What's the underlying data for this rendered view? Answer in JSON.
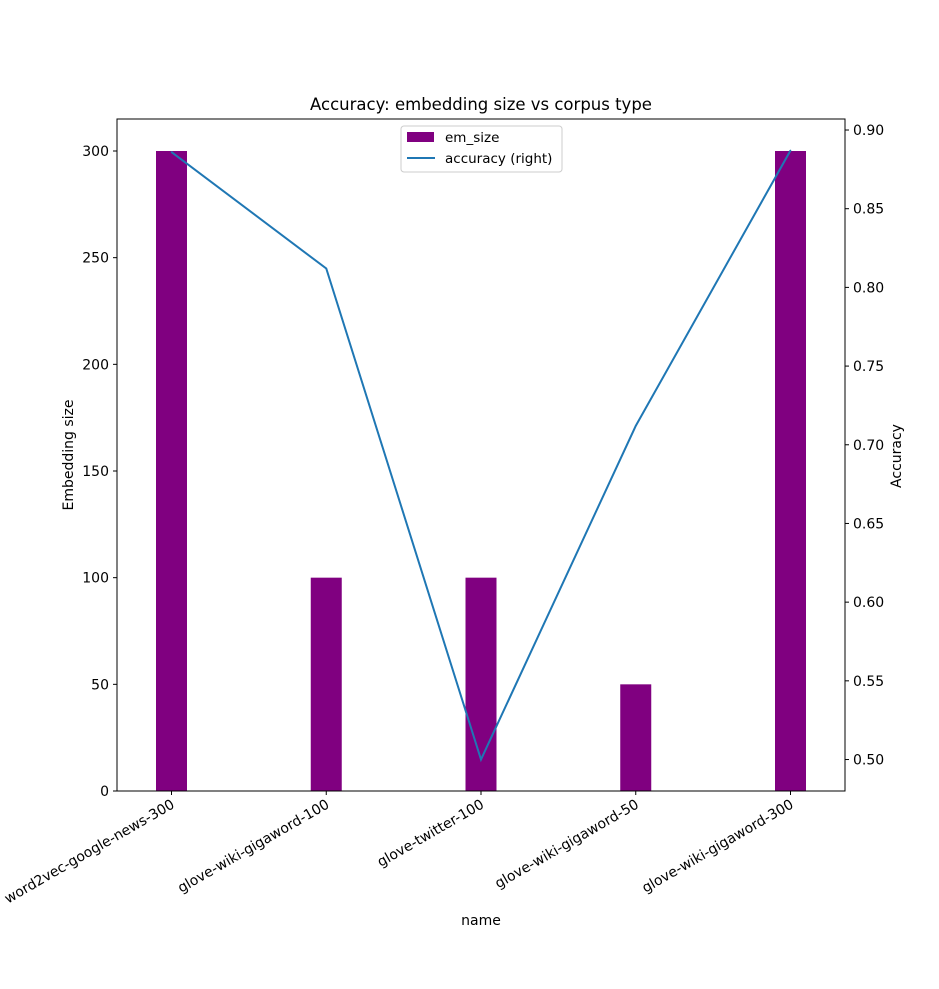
{
  "chart_data": {
    "type": "bar",
    "title": "Accuracy: embedding size vs corpus type",
    "xlabel": "name",
    "ylabel": "Embedding size",
    "y2label": "Accuracy",
    "categories": [
      "word2vec-google-news-300",
      "glove-wiki-gigaword-100",
      "glove-twitter-100",
      "glove-wiki-gigaword-50",
      "glove-wiki-gigaword-300"
    ],
    "series": [
      {
        "name": "em_size",
        "type": "bar",
        "axis": "left",
        "color": "#800080",
        "values": [
          300,
          100,
          100,
          50,
          300
        ]
      },
      {
        "name": "accuracy (right)",
        "type": "line",
        "axis": "right",
        "color": "#1f77b4",
        "values": [
          0.886,
          0.812,
          0.5,
          0.712,
          0.887
        ]
      }
    ],
    "ylim": [
      0,
      315
    ],
    "y2lim": [
      0.48,
      0.907
    ],
    "yticks": [
      "0",
      "50",
      "100",
      "150",
      "200",
      "250",
      "300"
    ],
    "y2ticks": [
      "0.50",
      "0.55",
      "0.60",
      "0.65",
      "0.70",
      "0.75",
      "0.80",
      "0.85",
      "0.90"
    ],
    "legend_position": "upper center",
    "grid": false
  }
}
